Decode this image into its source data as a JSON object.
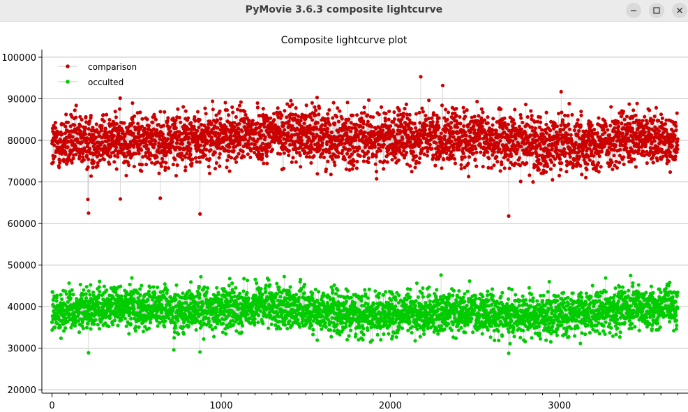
{
  "window": {
    "title": "PyMovie 3.6.3 composite lightcurve",
    "controls": [
      "minimize-icon",
      "maximize-icon",
      "close-icon"
    ]
  },
  "chart_data": {
    "type": "scatter",
    "title": "Composite lightcurve plot",
    "xlabel": "",
    "ylabel": "",
    "xlim": [
      -60,
      3760
    ],
    "ylim": [
      19200,
      101500
    ],
    "x_ticks": [
      0,
      1000,
      2000,
      3000
    ],
    "x_tick_labels": [
      "0",
      "1000",
      "2000",
      "3000"
    ],
    "y_ticks": [
      20000,
      30000,
      40000,
      50000,
      60000,
      70000,
      80000,
      90000,
      100000
    ],
    "y_tick_labels": [
      "20000",
      "30000",
      "40000",
      "50000",
      "60000",
      "70000",
      "80000",
      "90000",
      "100000"
    ],
    "grid": "horizontal",
    "legend_position": "top-left",
    "points_per_series": 3700,
    "series": [
      {
        "name": "comparison",
        "color": "#cc0000",
        "mean": 80000,
        "noise_sd": 3300,
        "x_range": [
          0,
          3699
        ],
        "notable_points": [
          {
            "x": 212,
            "y": 65800
          },
          {
            "x": 216,
            "y": 62500
          },
          {
            "x": 404,
            "y": 65900
          },
          {
            "x": 640,
            "y": 66100
          },
          {
            "x": 875,
            "y": 62300
          },
          {
            "x": 2180,
            "y": 95300
          },
          {
            "x": 2310,
            "y": 93200
          },
          {
            "x": 2700,
            "y": 61800
          },
          {
            "x": 3010,
            "y": 91700
          }
        ]
      },
      {
        "name": "occulted",
        "color": "#00cc00",
        "mean": 39000,
        "noise_sd": 2600,
        "x_range": [
          0,
          3699
        ],
        "notable_points": [
          {
            "x": 216,
            "y": 28900
          },
          {
            "x": 720,
            "y": 29600
          },
          {
            "x": 875,
            "y": 29100
          },
          {
            "x": 880,
            "y": 47200
          },
          {
            "x": 2300,
            "y": 47600
          },
          {
            "x": 2700,
            "y": 28800
          },
          {
            "x": 2940,
            "y": 46000
          }
        ]
      }
    ]
  }
}
